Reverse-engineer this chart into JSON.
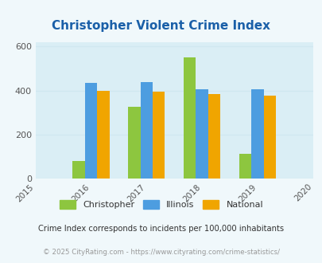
{
  "title": "Christopher Violent Crime Index",
  "years": [
    2016,
    2017,
    2018,
    2019
  ],
  "christopher": [
    80,
    328,
    550,
    115
  ],
  "illinois": [
    435,
    440,
    405,
    405
  ],
  "national": [
    398,
    395,
    383,
    378
  ],
  "colors": {
    "christopher": "#8dc63f",
    "illinois": "#4d9de0",
    "national": "#f0a500"
  },
  "xlim": [
    2015,
    2020
  ],
  "ylim": [
    0,
    620
  ],
  "yticks": [
    0,
    200,
    400,
    600
  ],
  "title_color": "#1a5fa8",
  "title_fontsize": 11,
  "bg_color": "#f0f8fb",
  "legend_labels": [
    "Christopher",
    "Illinois",
    "National"
  ],
  "footnote1": "Crime Index corresponds to incidents per 100,000 inhabitants",
  "footnote2": "© 2025 CityRating.com - https://www.cityrating.com/crime-statistics/",
  "bar_width": 0.22,
  "grid_color": "#d0e8f0",
  "axis_bg": "#daeef5"
}
